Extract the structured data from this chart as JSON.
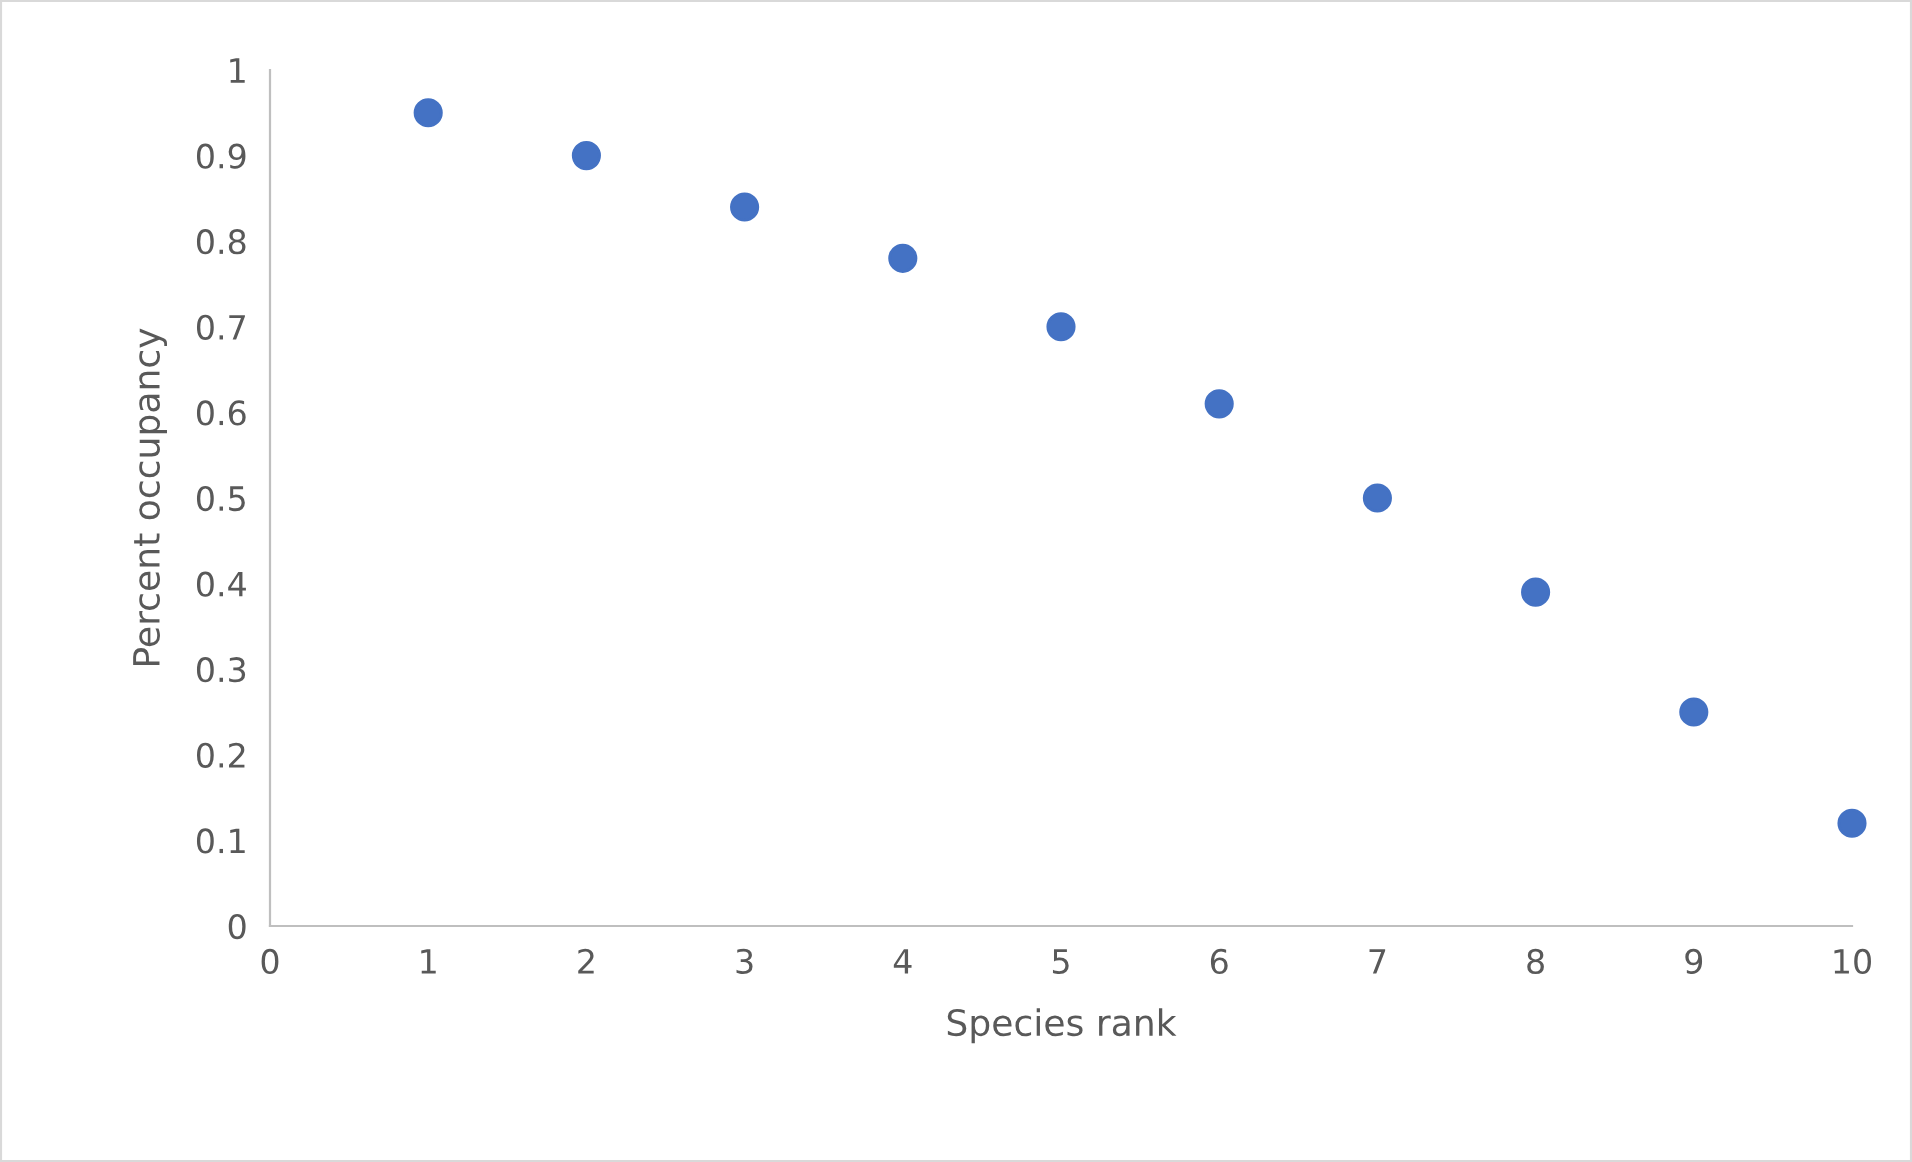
{
  "chart_data": {
    "type": "scatter",
    "xlabel": "Species rank",
    "ylabel": "Percent occupancy",
    "x": [
      1,
      2,
      3,
      4,
      5,
      6,
      7,
      8,
      9,
      10
    ],
    "series": [
      {
        "color": "#4472c4",
        "values": [
          0.95,
          0.9,
          0.84,
          0.78,
          0.7,
          0.61,
          0.5,
          0.39,
          0.25,
          0.12
        ]
      }
    ],
    "xlim": [
      0,
      10
    ],
    "ylim": [
      0,
      1
    ],
    "xticks": [
      0,
      1,
      2,
      3,
      4,
      5,
      6,
      7,
      8,
      9,
      10
    ],
    "yticks": [
      0,
      0.1,
      0.2,
      0.3,
      0.4,
      0.5,
      0.6,
      0.7,
      0.8,
      0.9,
      1
    ],
    "grid": false,
    "legend": false,
    "marker": "circle"
  }
}
